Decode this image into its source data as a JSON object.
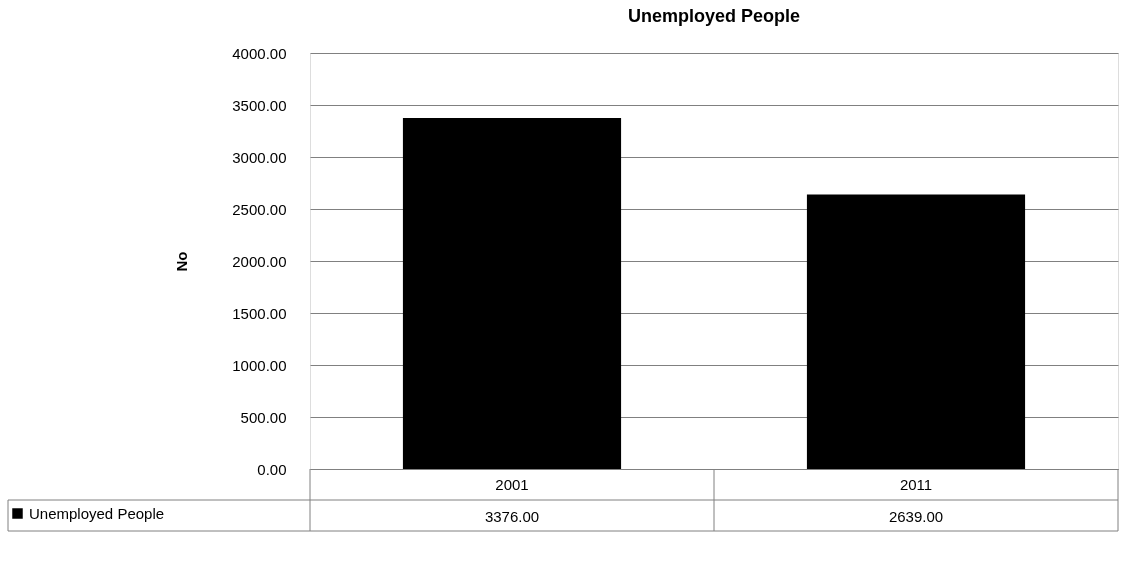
{
  "chart_data": {
    "type": "bar",
    "title": "Unemployed People",
    "ylabel": "No",
    "categories": [
      "2001",
      "2011"
    ],
    "series": [
      {
        "name": "Unemployed People",
        "color": "#000000",
        "values": [
          3376,
          2639
        ],
        "value_labels": [
          "3376.00",
          "2639.00"
        ]
      }
    ],
    "ylim": [
      0,
      4000
    ],
    "yticks": [
      {
        "value": 0,
        "label": "0.00"
      },
      {
        "value": 500,
        "label": "500.00"
      },
      {
        "value": 1000,
        "label": "1000.00"
      },
      {
        "value": 1500,
        "label": "1500.00"
      },
      {
        "value": 2000,
        "label": "2000.00"
      },
      {
        "value": 2500,
        "label": "2500.00"
      },
      {
        "value": 3000,
        "label": "3000.00"
      },
      {
        "value": 3500,
        "label": "3500.00"
      },
      {
        "value": 4000,
        "label": "4000.00"
      }
    ],
    "grid": "y",
    "legend": "bottom left"
  }
}
